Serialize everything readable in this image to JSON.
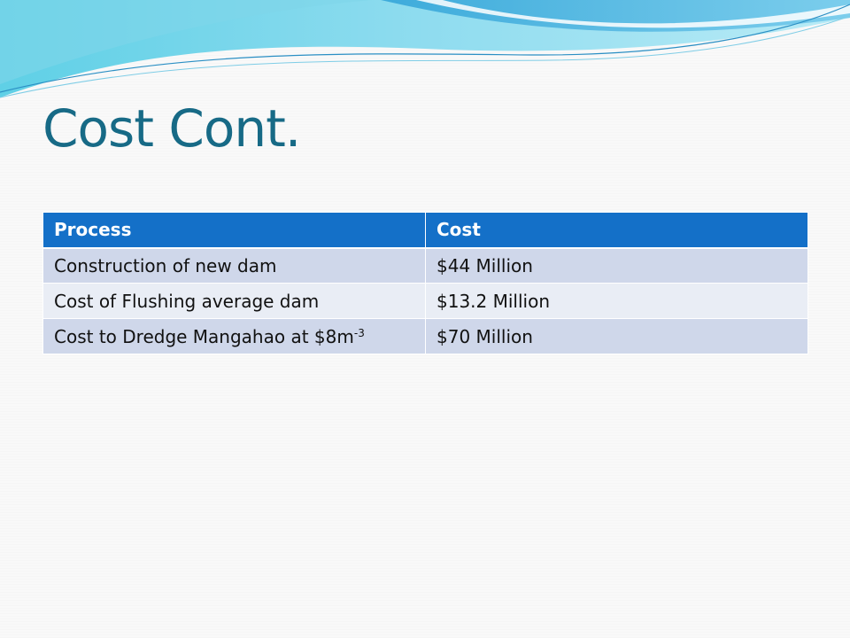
{
  "slide": {
    "title": "Cost Cont."
  },
  "table": {
    "headers": [
      "Process",
      "Cost"
    ],
    "rows": [
      {
        "process": "Construction of new dam",
        "cost": "$44 Million"
      },
      {
        "process": "Cost of Flushing average dam",
        "cost": "$13.2 Million"
      },
      {
        "process": "Cost to Dredge Mangahao at $8m",
        "process_sup": "-3",
        "cost": "$70 Million"
      }
    ]
  },
  "colors": {
    "title": "#176a86",
    "header_bg": "#1470c8",
    "row_odd": "#cfd7ea",
    "row_even": "#e9edf5"
  }
}
